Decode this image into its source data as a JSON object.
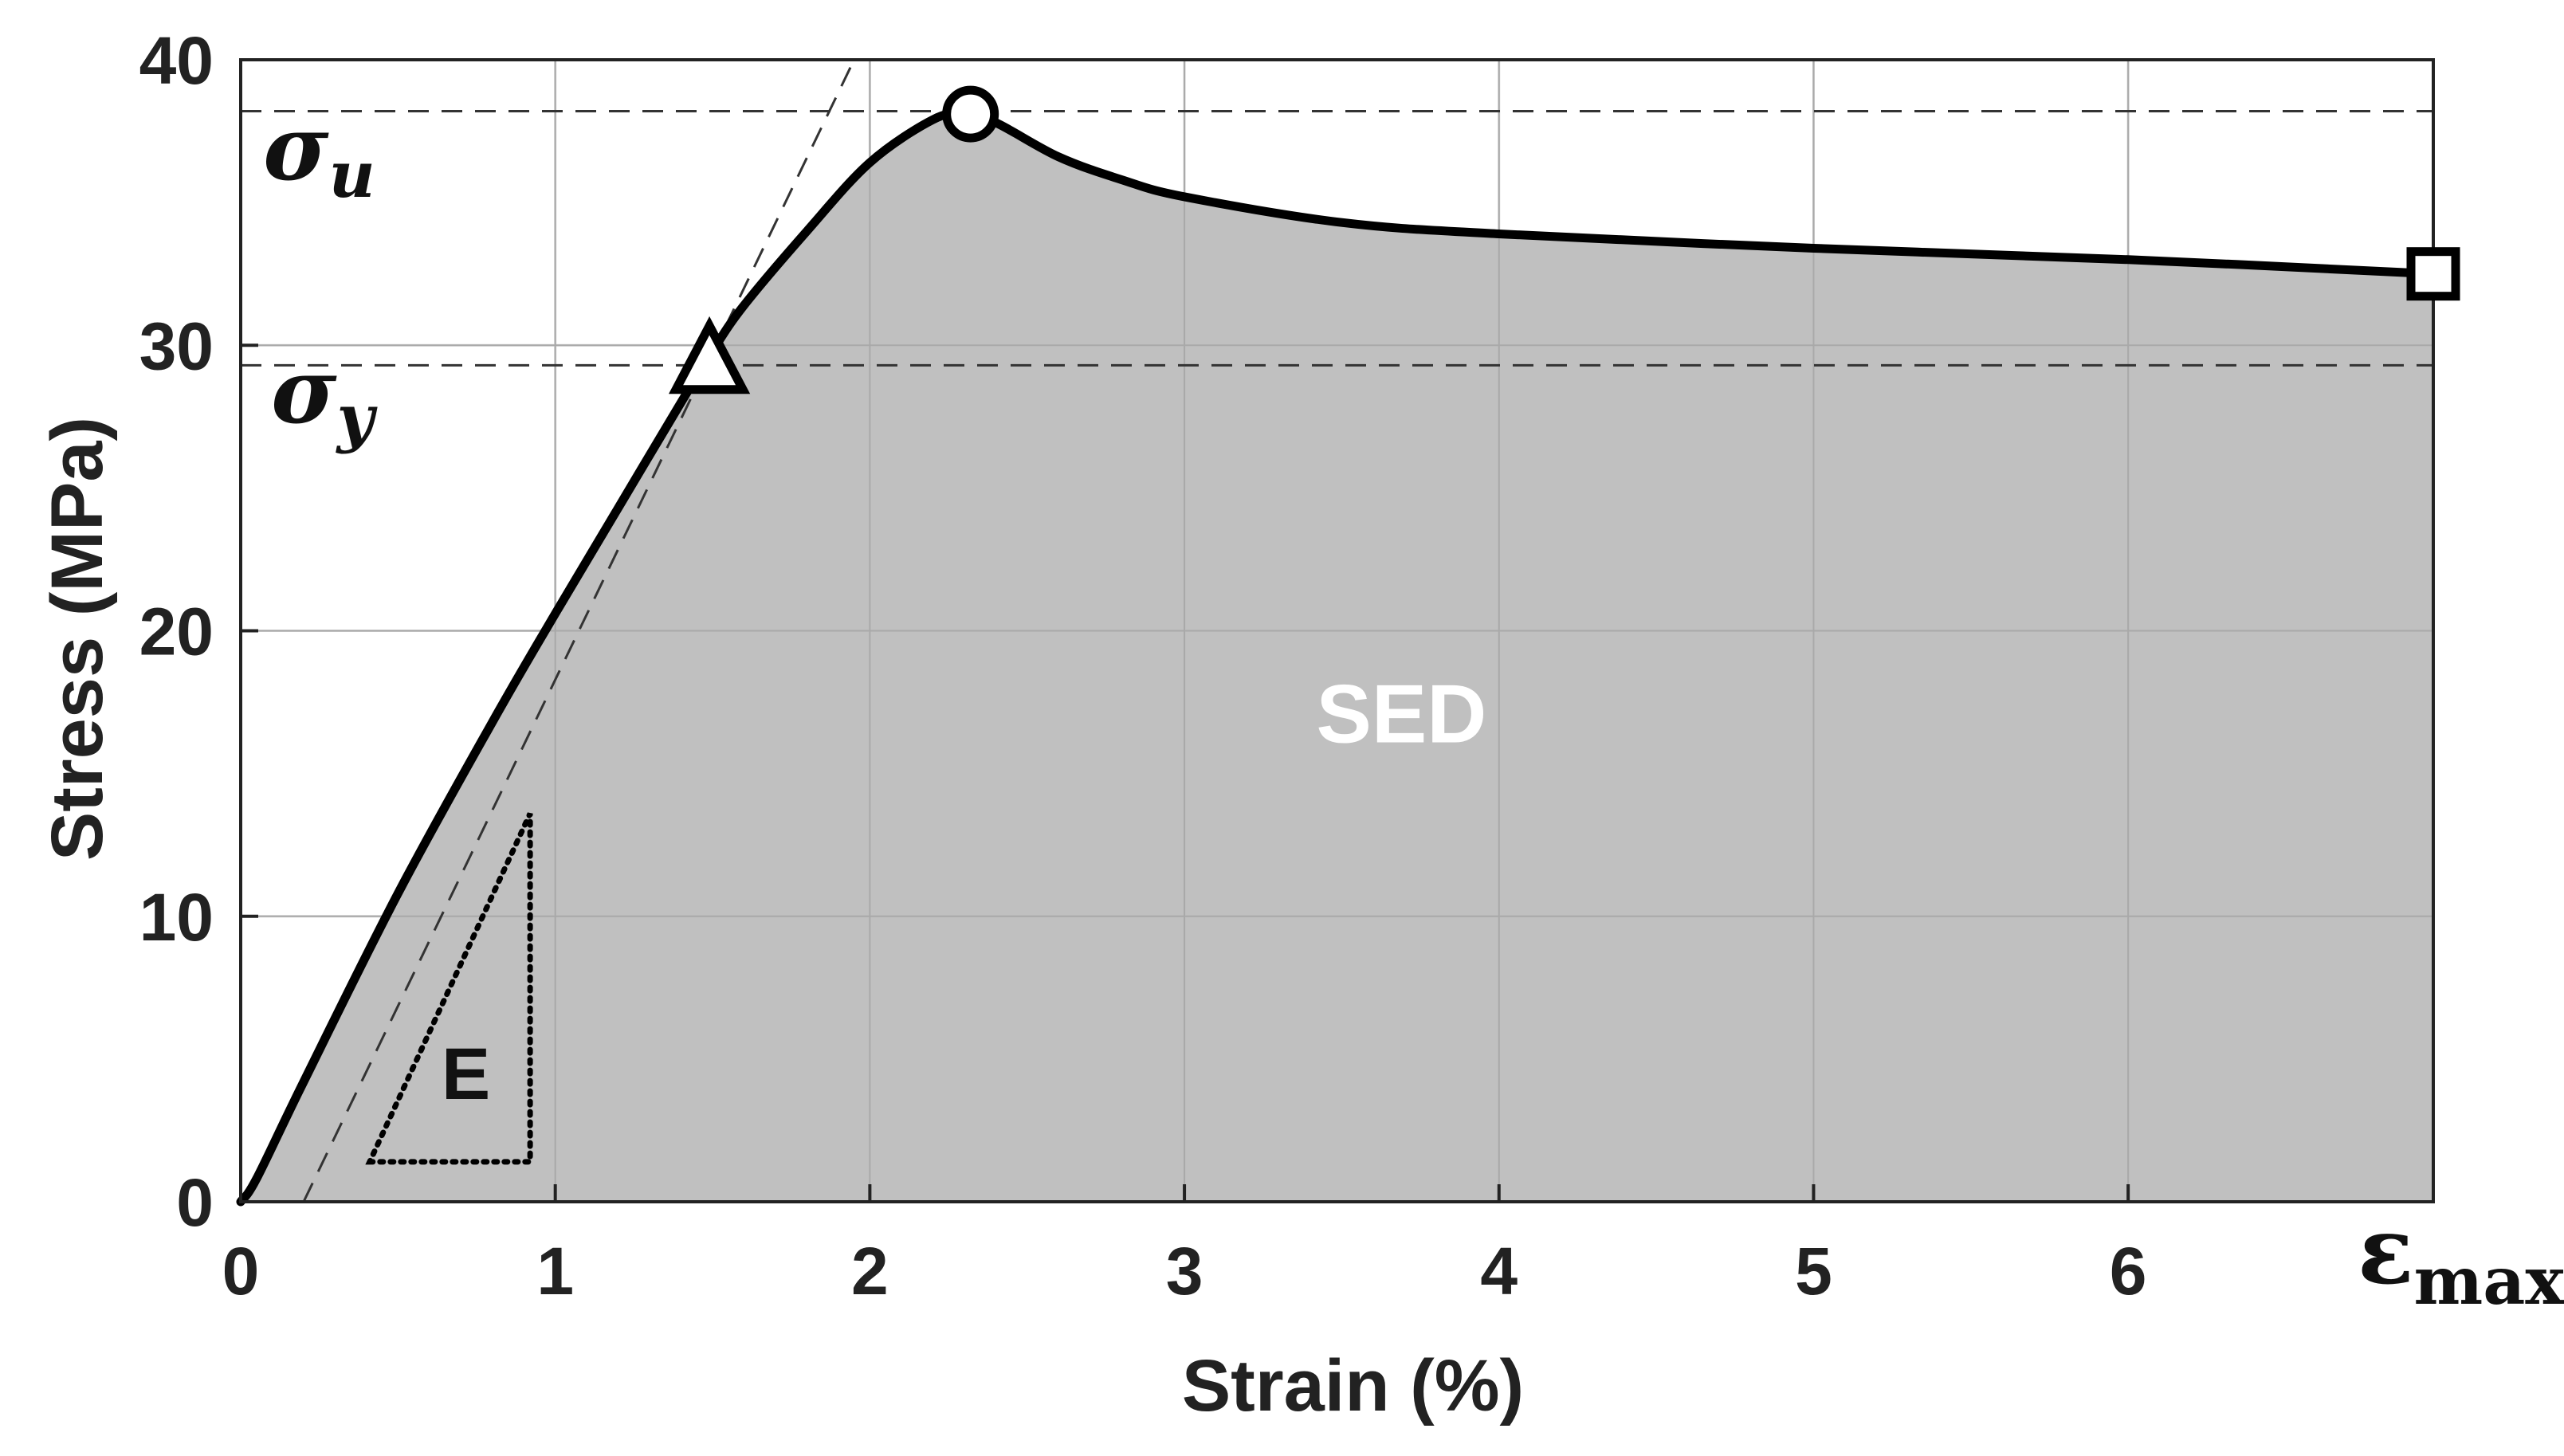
{
  "chart_data": {
    "type": "area",
    "xlabel": "Strain (%)",
    "ylabel": "Stress (MPa)",
    "xlim": [
      0,
      6.97
    ],
    "ylim": [
      0,
      40
    ],
    "xticks": [
      0,
      1,
      2,
      3,
      4,
      5,
      6
    ],
    "xtick_labels": [
      "0",
      "1",
      "2",
      "3",
      "4",
      "5",
      "6"
    ],
    "yticks": [
      0,
      10,
      20,
      30,
      40
    ],
    "ytick_labels": [
      "0",
      "10",
      "20",
      "30",
      "40"
    ],
    "grid": true,
    "series": [
      {
        "style": "solid-black-with-grey-fill",
        "x": [
          0,
          0.05,
          0.2,
          0.5,
          0.8,
          1.0,
          1.2,
          1.4,
          1.5,
          1.6,
          1.8,
          2.0,
          2.2,
          2.3,
          2.4,
          2.6,
          2.8,
          3.0,
          3.5,
          4.0,
          5.0,
          6.0,
          6.97
        ],
        "y": [
          0,
          0.8,
          4.2,
          10.8,
          16.8,
          20.6,
          24.3,
          28.0,
          29.8,
          31.4,
          34.0,
          36.4,
          37.9,
          38.1,
          37.8,
          36.6,
          35.8,
          35.2,
          34.3,
          33.9,
          33.4,
          33.0,
          32.5
        ]
      }
    ],
    "reference_lines": [
      {
        "type": "horizontal-dashed",
        "y": 38.2
      },
      {
        "type": "horizontal-dashed",
        "y": 29.3
      },
      {
        "type": "dashed-slope",
        "x": [
          0.2,
          1.95
        ],
        "y": [
          0,
          40
        ]
      }
    ],
    "markers": [
      {
        "shape": "triangle",
        "x": 1.49,
        "y": 29.3
      },
      {
        "shape": "circle",
        "x": 2.32,
        "y": 38.1
      },
      {
        "shape": "square",
        "x": 6.97,
        "y": 32.5
      }
    ],
    "slope_triangle": {
      "x": [
        0.41,
        0.92
      ],
      "y": [
        1.4,
        13.6
      ],
      "label": "E"
    },
    "annotations": {
      "area_label": "SED",
      "sigma_u": {
        "base": "σ",
        "sub": "u"
      },
      "sigma_y": {
        "base": "σ",
        "sub": "y"
      },
      "eps_max": {
        "base": "ε",
        "sub": "max"
      }
    },
    "colors": {
      "fill": "#c0c0c0",
      "curve": "#000000",
      "grid": "#d6d6d6",
      "area_label": "#ffffff"
    }
  }
}
